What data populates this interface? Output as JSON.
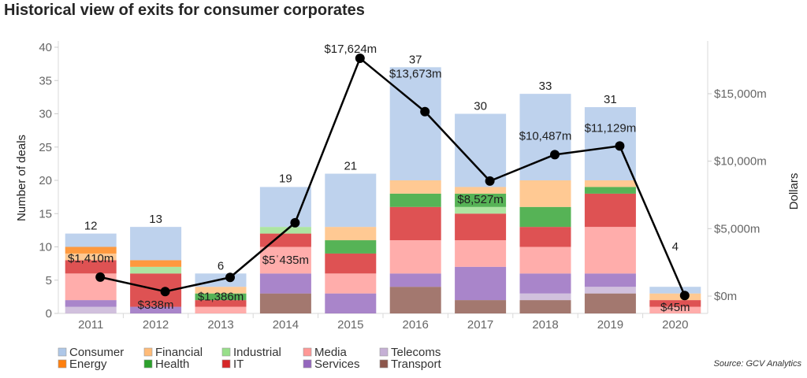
{
  "header": {
    "title": "Historical view of exits for consumer corporates"
  },
  "footer": {
    "source": "Source: GCV Analytics"
  },
  "chart_data": {
    "type": "bar",
    "stacked": true,
    "title": "Historical view of exits for consumer corporates",
    "xlabel": "",
    "ylabel": "Number of deals",
    "y2label": "Dollars",
    "ylim": [
      0,
      40
    ],
    "y2lim": [
      -1284,
      18444
    ],
    "yticks": [
      0,
      5,
      10,
      15,
      20,
      25,
      30,
      35,
      40
    ],
    "ytick_labels": [
      "0",
      "5",
      "10",
      "15",
      "20",
      "25",
      "30",
      "35",
      "40"
    ],
    "y2ticks": [
      0,
      5000,
      10000,
      15000
    ],
    "y2tick_labels": [
      "$0m",
      "$5,000m",
      "$10,000m",
      "$15,000m"
    ],
    "grid": false,
    "legend_position": "bottom-left",
    "categories": [
      "2011",
      "2012",
      "2013",
      "2014",
      "2015",
      "2016",
      "2017",
      "2018",
      "2019",
      "2020"
    ],
    "series": [
      {
        "name": "Consumer",
        "color": "#aec7e8",
        "values": [
          2,
          5,
          2,
          6,
          8,
          17,
          11,
          13,
          11,
          1
        ]
      },
      {
        "name": "Energy",
        "color": "#ff7f0e",
        "values": [
          1,
          1,
          0,
          0,
          0,
          0,
          0,
          0,
          0,
          0
        ]
      },
      {
        "name": "Financial",
        "color": "#ffbb78",
        "values": [
          1,
          0,
          1,
          0,
          2,
          2,
          1,
          4,
          1,
          1
        ]
      },
      {
        "name": "Health",
        "color": "#2ca02c",
        "values": [
          0,
          0,
          1,
          0,
          2,
          2,
          2,
          3,
          1,
          0
        ]
      },
      {
        "name": "Industrial",
        "color": "#98df8a",
        "values": [
          0,
          1,
          0,
          1,
          0,
          0,
          1,
          0,
          0,
          0
        ]
      },
      {
        "name": "IT",
        "color": "#d62728",
        "values": [
          2,
          5,
          1,
          2,
          3,
          5,
          4,
          3,
          5,
          1
        ]
      },
      {
        "name": "Media",
        "color": "#ff9896",
        "values": [
          4,
          0,
          1,
          4,
          3,
          5,
          4,
          4,
          7,
          1
        ]
      },
      {
        "name": "Services",
        "color": "#9467bd",
        "values": [
          1,
          1,
          0,
          3,
          3,
          2,
          5,
          3,
          2,
          0
        ]
      },
      {
        "name": "Telecoms",
        "color": "#c5b0d5",
        "values": [
          1,
          0,
          0,
          0,
          0,
          0,
          0,
          1,
          1,
          0
        ]
      },
      {
        "name": "Transport",
        "color": "#8c564b",
        "values": [
          0,
          0,
          0,
          3,
          0,
          4,
          2,
          2,
          3,
          0
        ]
      }
    ],
    "totals": [
      12,
      13,
      6,
      19,
      21,
      37,
      30,
      33,
      31,
      4
    ],
    "total_labels": [
      "12",
      "13",
      "6",
      "19",
      "21",
      "37",
      "30",
      "33",
      "31",
      "4"
    ],
    "line_series": {
      "name": "Dollars",
      "axis": "right",
      "color": "#000000",
      "values": [
        1410,
        338,
        1386,
        5435,
        17624,
        13673,
        8527,
        10487,
        11129,
        45
      ],
      "labels": [
        "$1,410m",
        "$338m",
        "$1,386m",
        "$5ˈ435m",
        "$17,624m",
        "$13,673m",
        "$8,527m",
        "$10,487m",
        "$11,129m",
        "$45m"
      ]
    }
  }
}
